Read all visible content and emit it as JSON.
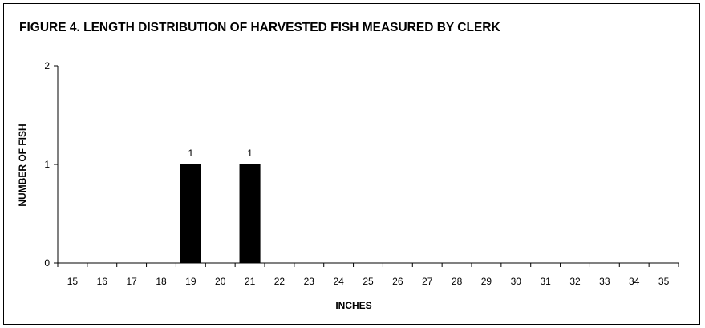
{
  "chart_data": {
    "type": "bar",
    "title": "FIGURE 4.  LENGTH DISTRIBUTION OF HARVESTED FISH MEASURED BY CLERK",
    "xlabel": "INCHES",
    "ylabel": "NUMBER OF FISH",
    "ylim": [
      0,
      2
    ],
    "yticks": [
      0,
      1,
      2
    ],
    "categories": [
      "15",
      "16",
      "17",
      "18",
      "19",
      "20",
      "21",
      "22",
      "23",
      "24",
      "25",
      "26",
      "27",
      "28",
      "29",
      "30",
      "31",
      "32",
      "33",
      "34",
      "35"
    ],
    "values": [
      0,
      0,
      0,
      0,
      1,
      0,
      1,
      0,
      0,
      0,
      0,
      0,
      0,
      0,
      0,
      0,
      0,
      0,
      0,
      0,
      0
    ],
    "data_labels": [
      "",
      "",
      "",
      "",
      "1",
      "",
      "1",
      "",
      "",
      "",
      "",
      "",
      "",
      "",
      "",
      "",
      "",
      "",
      "",
      "",
      ""
    ],
    "grid": false,
    "legend": "none",
    "bar_color": "#000000"
  }
}
